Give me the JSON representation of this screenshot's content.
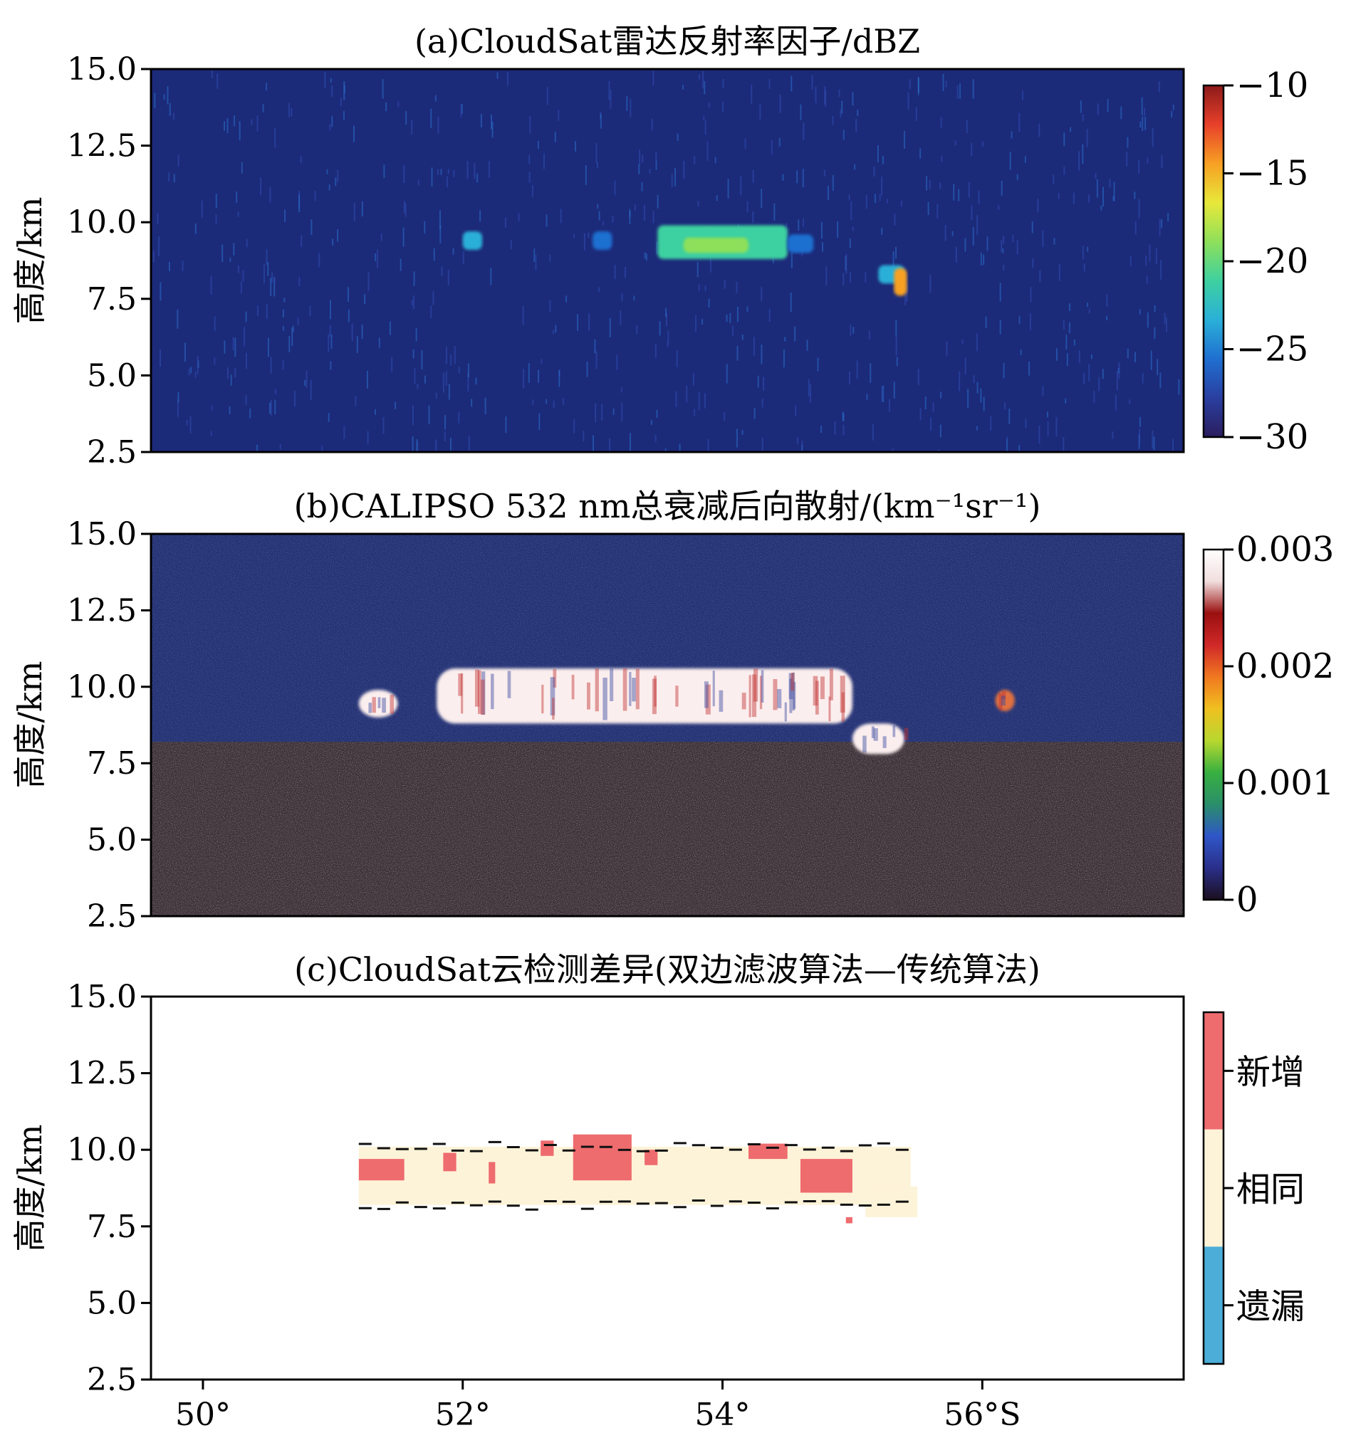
{
  "chart_data": [
    {
      "panel": "a",
      "type": "heatmap",
      "title": "(a)CloudSat雷达反射率因子/dBZ",
      "ylabel": "高度/km",
      "xlim": [
        49.6,
        57.55
      ],
      "ylim": [
        2.5,
        15.0
      ],
      "yticks": [
        "15.0",
        "12.5",
        "10.0",
        "7.5",
        "5.0",
        "2.5"
      ],
      "background_color": "#1c2a7a",
      "colorbar": {
        "min": -30,
        "max": -10,
        "ticks": [
          "−10",
          "−15",
          "−20",
          "−25",
          "−30"
        ],
        "colors": [
          "#2b1d5e",
          "#2a3fa0",
          "#1f6fd0",
          "#2ab0d8",
          "#3ed0a0",
          "#8ee05a",
          "#e8e83a",
          "#f7a023",
          "#e8402a",
          "#8c1a1a"
        ]
      },
      "features": [
        {
          "label": "cloud",
          "lat": [
            52.0,
            52.15
          ],
          "alt": [
            9.1,
            9.7
          ],
          "dBZ": -24
        },
        {
          "label": "cloud",
          "lat": [
            53.0,
            53.15
          ],
          "alt": [
            9.1,
            9.7
          ],
          "dBZ": -26
        },
        {
          "label": "cloud",
          "lat": [
            53.5,
            54.5
          ],
          "alt": [
            8.8,
            9.9
          ],
          "dBZ": -21
        },
        {
          "label": "core",
          "lat": [
            53.7,
            54.2
          ],
          "alt": [
            9.0,
            9.5
          ],
          "dBZ": -19
        },
        {
          "label": "cloud",
          "lat": [
            54.5,
            54.7
          ],
          "alt": [
            9.0,
            9.6
          ],
          "dBZ": -25
        },
        {
          "label": "cloud",
          "lat": [
            55.2,
            55.4
          ],
          "alt": [
            8.0,
            8.6
          ],
          "dBZ": -24
        },
        {
          "label": "core",
          "lat": [
            55.32,
            55.42
          ],
          "alt": [
            7.6,
            8.5
          ],
          "dBZ": -15
        }
      ]
    },
    {
      "panel": "b",
      "type": "heatmap",
      "title": "(b)CALIPSO 532 nm总衰减后向散射/(km⁻¹sr⁻¹)",
      "ylabel": "高度/km",
      "xlim": [
        49.6,
        57.55
      ],
      "ylim": [
        2.5,
        15.0
      ],
      "yticks": [
        "15.0",
        "12.5",
        "10.0",
        "7.5",
        "5.0",
        "2.5"
      ],
      "background_color": "#23306e",
      "attenuated_color": "#3a2f35",
      "attenuation_top_km": 8.2,
      "colorbar": {
        "min": 0,
        "max": 0.003,
        "ticks": [
          "0.003",
          "0.002",
          "0.001",
          "0"
        ],
        "colors": [
          "#1b0f1f",
          "#2a2f8a",
          "#2f56c8",
          "#2a8f6a",
          "#38b040",
          "#b8d830",
          "#f0c020",
          "#f07820",
          "#d02828",
          "#9a1010",
          "#f2dede",
          "#ffffff"
        ]
      },
      "features": [
        {
          "label": "cloud",
          "lat": [
            51.2,
            51.5
          ],
          "alt": [
            9.0,
            9.9
          ],
          "beta": 0.003
        },
        {
          "label": "cloud",
          "lat": [
            51.8,
            55.0
          ],
          "alt": [
            8.8,
            10.6
          ],
          "beta": 0.003
        },
        {
          "label": "cloud",
          "lat": [
            55.0,
            55.4
          ],
          "alt": [
            7.8,
            8.8
          ],
          "beta": 0.003
        },
        {
          "label": "cloud",
          "lat": [
            56.1,
            56.25
          ],
          "alt": [
            9.2,
            9.9
          ],
          "beta": 0.002
        }
      ]
    },
    {
      "panel": "c",
      "type": "heatmap",
      "title": "(c)CloudSat云检测差异(双边滤波算法—传统算法)",
      "ylabel": "高度/km",
      "xlim": [
        49.6,
        57.55
      ],
      "ylim": [
        2.5,
        15.0
      ],
      "yticks": [
        "15.0",
        "12.5",
        "10.0",
        "7.5",
        "5.0",
        "2.5"
      ],
      "xticks": [
        {
          "value": 50,
          "label": "50°"
        },
        {
          "value": 52,
          "label": "52°"
        },
        {
          "value": 54,
          "label": "54°"
        },
        {
          "value": 56,
          "label": "56°S"
        }
      ],
      "categories": [
        {
          "label": "新增",
          "color": "#ee6b6e"
        },
        {
          "label": "相同",
          "color": "#fdf3d8"
        },
        {
          "label": "遗漏",
          "color": "#4badd8"
        }
      ],
      "features": [
        {
          "category": "相同",
          "lat": [
            51.2,
            55.45
          ],
          "alt": [
            8.2,
            10.1
          ]
        },
        {
          "category": "新增",
          "lat": [
            51.2,
            51.55
          ],
          "alt": [
            9.0,
            9.7
          ]
        },
        {
          "category": "新增",
          "lat": [
            51.85,
            51.95
          ],
          "alt": [
            9.3,
            9.9
          ]
        },
        {
          "category": "新增",
          "lat": [
            52.2,
            52.25
          ],
          "alt": [
            8.9,
            9.6
          ]
        },
        {
          "category": "新增",
          "lat": [
            52.6,
            52.7
          ],
          "alt": [
            9.8,
            10.3
          ]
        },
        {
          "category": "新增",
          "lat": [
            52.85,
            53.3
          ],
          "alt": [
            9.0,
            10.5
          ]
        },
        {
          "category": "新增",
          "lat": [
            53.4,
            53.5
          ],
          "alt": [
            9.5,
            10.0
          ]
        },
        {
          "category": "新增",
          "lat": [
            54.2,
            54.5
          ],
          "alt": [
            9.7,
            10.2
          ]
        },
        {
          "category": "新增",
          "lat": [
            54.6,
            55.0
          ],
          "alt": [
            8.6,
            9.7
          ]
        },
        {
          "category": "新增",
          "lat": [
            54.95,
            55.0
          ],
          "alt": [
            7.6,
            7.8
          ]
        },
        {
          "category": "相同",
          "lat": [
            55.1,
            55.5
          ],
          "alt": [
            7.8,
            8.8
          ]
        }
      ]
    }
  ]
}
